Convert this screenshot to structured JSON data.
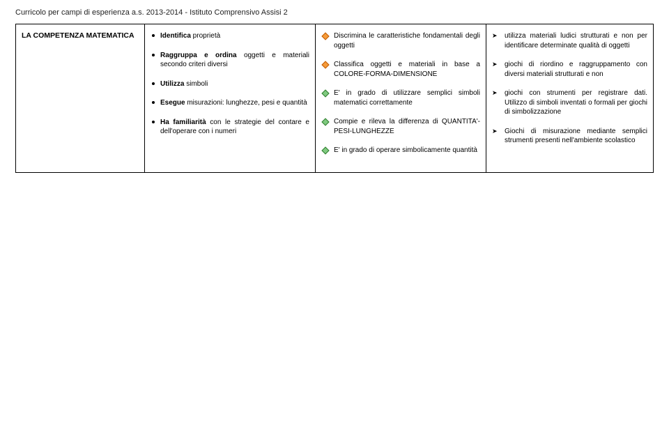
{
  "header": "Curricolo per campi di esperienza a.s. 2013-2014  - Istituto Comprensivo Assisi 2",
  "col1": {
    "title": "LA COMPETENZA MATEMATICA"
  },
  "col2": {
    "items": [
      {
        "pre": "",
        "bold": "Identifica",
        "post": " proprietà"
      },
      {
        "pre": "",
        "bold": "Raggruppa e ordina",
        "post": " oggetti e materiali secondo criteri diversi"
      },
      {
        "pre": "",
        "bold": "Utilizza",
        "post": " simboli"
      },
      {
        "pre": "",
        "bold": "Esegue",
        "post": " misurazioni: lunghezze, pesi e quantità"
      },
      {
        "pre": "",
        "bold": "Ha familiarità",
        "post": " con le strategie del contare e dell'operare con i numeri"
      }
    ]
  },
  "col3": {
    "orange": [
      "Discrimina le caratteristiche fondamentali degli oggetti",
      "Classifica oggetti e materiali in base a COLORE-FORMA-DIMENSIONE"
    ],
    "green": [
      "E' in grado di utilizzare semplici simboli matematici correttamente",
      "Compie e rileva la differenza di QUANTITA'-PESI-LUNGHEZZE",
      "E' in grado di operare simbolicamente quantità"
    ]
  },
  "col4": {
    "items": [
      "utilizza materiali ludici strutturati e non per identificare determinate qualità di oggetti",
      "giochi di riordino e raggruppamento con diversi materiali strutturati e non",
      "giochi con strumenti per registrare dati. Utilizzo di simboli inventati o formali per giochi di simbolizzazione",
      "Giochi di misurazione mediante semplici strumenti presenti nell'ambiente scolastico"
    ]
  }
}
